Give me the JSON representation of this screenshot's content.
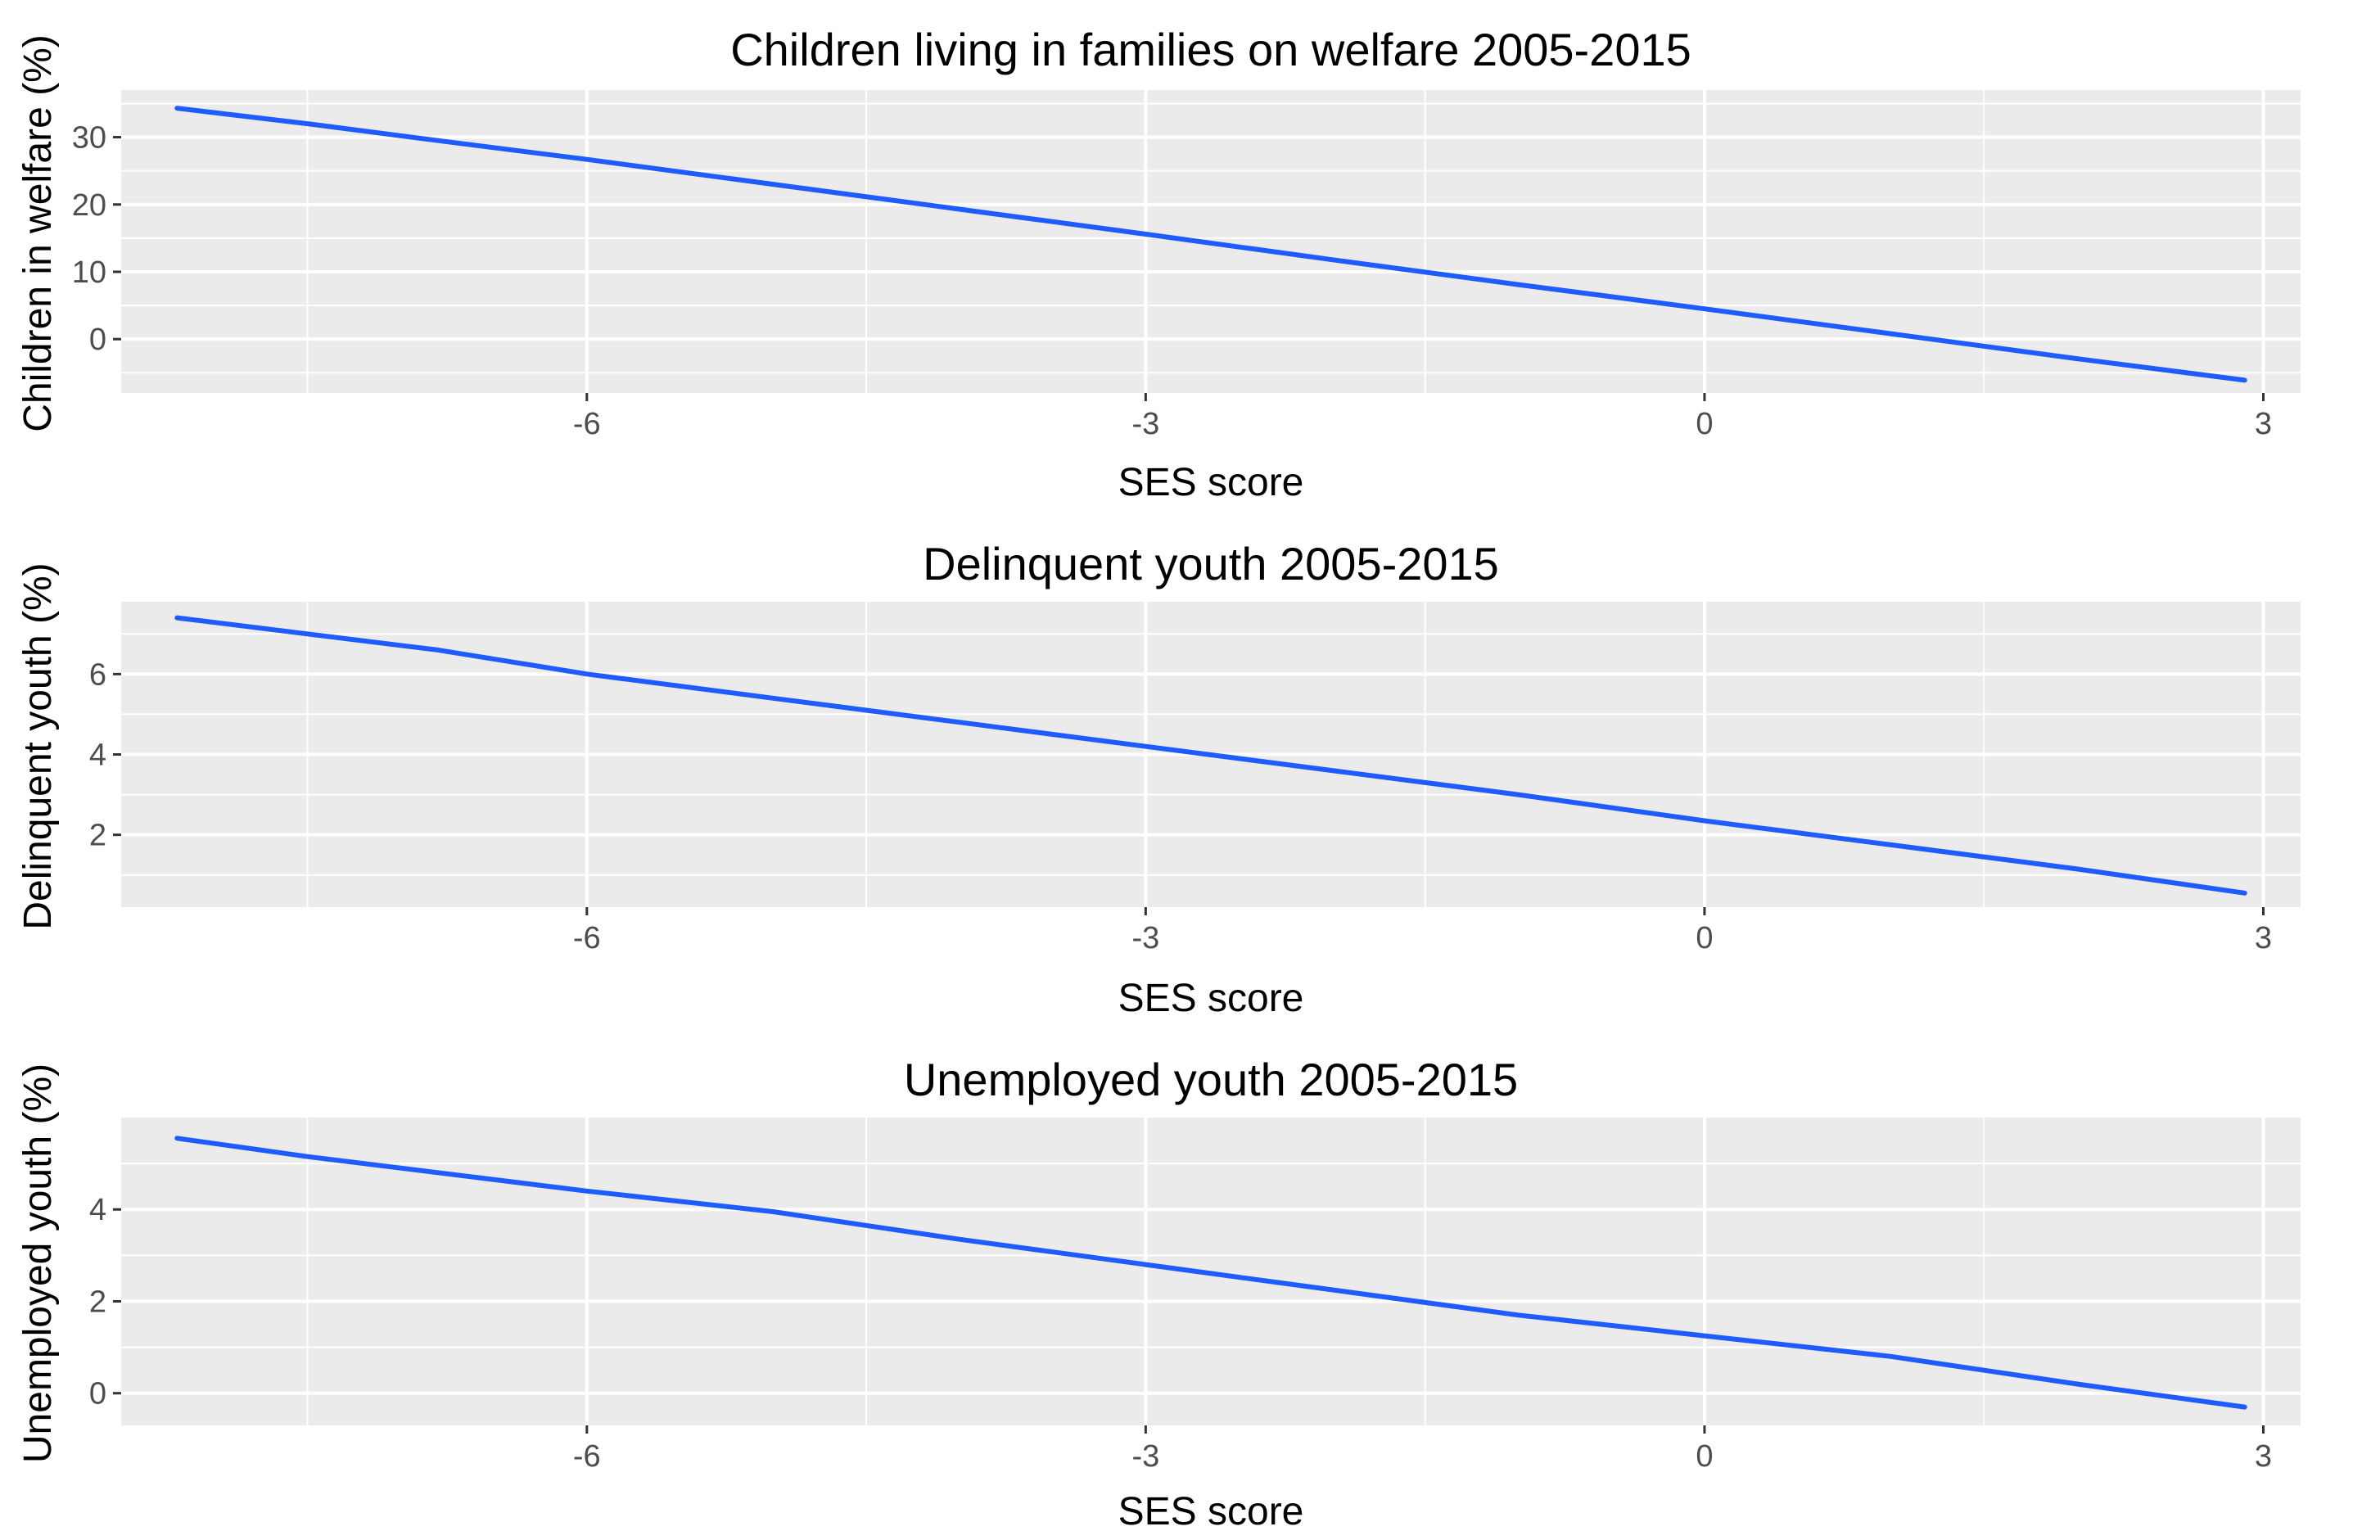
{
  "figure": {
    "name": "SES score panels"
  },
  "colors": {
    "line": "#1f5cff",
    "panel_bg": "#ebebeb",
    "grid": "#ffffff",
    "tick_text": "#4d4d4d",
    "tick_mark": "#333333"
  },
  "chart_data": [
    {
      "type": "line",
      "title": "Children living in families on welfare 2005-2015",
      "xlabel": "SES score",
      "ylabel": "Children in welfare (%)",
      "xlim": [
        -8.5,
        3.2
      ],
      "ylim": [
        -8,
        37
      ],
      "xticks": [
        -6,
        -3,
        0,
        3
      ],
      "yticks": [
        0,
        10,
        20,
        30
      ],
      "grid": true,
      "series": [
        {
          "name": "Children in welfare",
          "x": [
            -8.2,
            -7.5,
            -6.8,
            -6.0,
            -5.0,
            -4.0,
            -3.0,
            -2.0,
            -1.0,
            0.0,
            1.0,
            2.0,
            2.9
          ],
          "y": [
            34.3,
            32.0,
            29.5,
            26.7,
            23.0,
            19.3,
            15.6,
            11.8,
            8.1,
            4.5,
            0.8,
            -2.9,
            -6.1
          ]
        }
      ]
    },
    {
      "type": "line",
      "title": "Delinquent youth 2005-2015",
      "xlabel": "SES score",
      "ylabel": "Delinquent youth (%)",
      "xlim": [
        -8.5,
        3.2
      ],
      "ylim": [
        0.2,
        7.8
      ],
      "xticks": [
        -6,
        -3,
        0,
        3
      ],
      "yticks": [
        2,
        4,
        6
      ],
      "grid": true,
      "series": [
        {
          "name": "Delinquent youth",
          "x": [
            -8.2,
            -7.5,
            -6.8,
            -6.0,
            -5.0,
            -4.0,
            -3.0,
            -2.0,
            -1.0,
            0.0,
            1.0,
            2.0,
            2.9
          ],
          "y": [
            7.4,
            7.0,
            6.6,
            6.0,
            5.4,
            4.8,
            4.2,
            3.6,
            3.0,
            2.35,
            1.75,
            1.15,
            0.55
          ]
        }
      ]
    },
    {
      "type": "line",
      "title": "Unemployed youth 2005-2015",
      "xlabel": "SES score",
      "ylabel": "Unemployed youth (%)",
      "xlim": [
        -8.5,
        3.2
      ],
      "ylim": [
        -0.7,
        6.0
      ],
      "xticks": [
        -6,
        -3,
        0,
        3
      ],
      "yticks": [
        0,
        2,
        4
      ],
      "grid": true,
      "series": [
        {
          "name": "Unemployed youth",
          "x": [
            -8.2,
            -7.5,
            -6.8,
            -6.0,
            -5.0,
            -4.0,
            -3.0,
            -2.0,
            -1.0,
            0.0,
            1.0,
            2.0,
            2.9
          ],
          "y": [
            5.55,
            5.15,
            4.8,
            4.4,
            3.95,
            3.35,
            2.8,
            2.25,
            1.7,
            1.25,
            0.8,
            0.2,
            -0.3
          ]
        }
      ]
    }
  ]
}
